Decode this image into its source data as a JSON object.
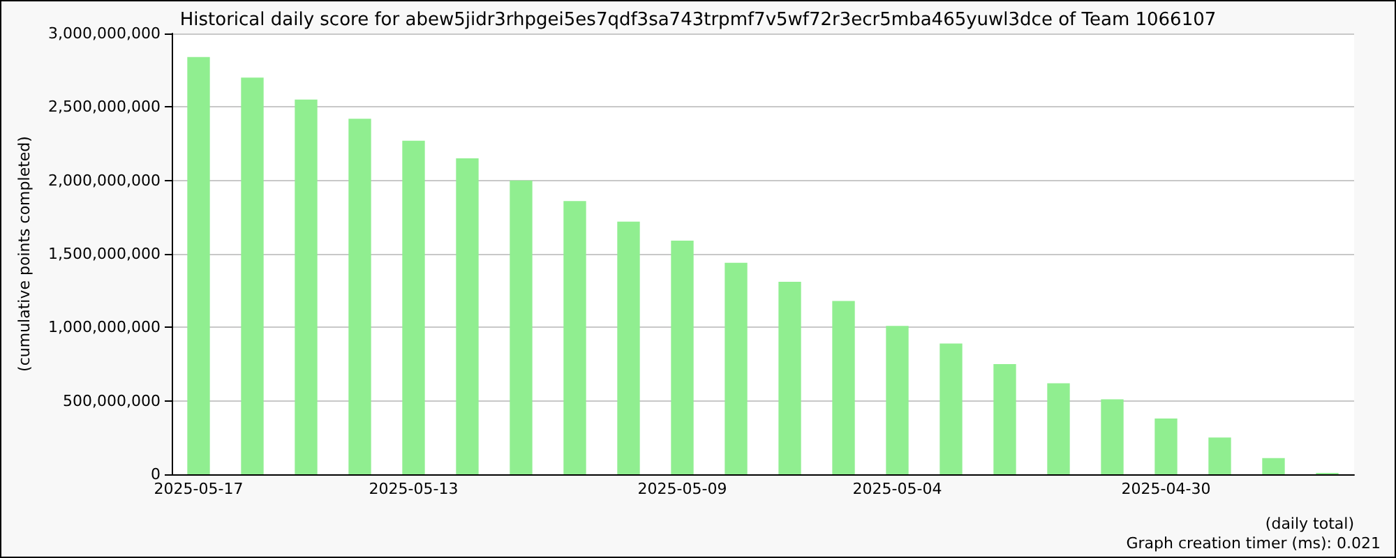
{
  "chart_data": {
    "type": "bar",
    "title": "Historical daily score for abew5jidr3rhpgei5es7qdf3sa743trpmf7v5wf72r3ecr5mba465yuwl3dce of Team 1066107",
    "xlabel": "(daily total)",
    "ylabel": "(cumulative points completed)",
    "annotations": [
      "Graph creation timer (ms): 0.021"
    ],
    "categories": [
      "2025-05-17",
      null,
      null,
      null,
      "2025-05-13",
      null,
      null,
      null,
      null,
      "2025-05-09",
      null,
      null,
      null,
      "2025-05-04",
      null,
      null,
      null,
      null,
      "2025-04-30",
      null,
      null,
      null
    ],
    "values": [
      2840000000,
      2700000000,
      2550000000,
      2420000000,
      2270000000,
      2150000000,
      2000000000,
      1860000000,
      1720000000,
      1590000000,
      1440000000,
      1310000000,
      1180000000,
      1010000000,
      890000000,
      750000000,
      620000000,
      510000000,
      380000000,
      250000000,
      110000000,
      10000000
    ],
    "color": "#90ee90",
    "ylim": [
      0,
      3000000000
    ],
    "yticks": [
      0,
      {
        "value": 500000000,
        "label": "500,000,000"
      },
      {
        "value": 1000000000,
        "label": "1,000,000,000"
      },
      {
        "value": 1500000000,
        "label": "1,500,000,000"
      },
      {
        "value": 2000000000,
        "label": "2,000,000,000"
      },
      {
        "value": 2500000000,
        "label": "2,500,000,000"
      },
      {
        "value": 3000000000,
        "label": "3,000,000,000"
      }
    ],
    "grid": "y"
  }
}
